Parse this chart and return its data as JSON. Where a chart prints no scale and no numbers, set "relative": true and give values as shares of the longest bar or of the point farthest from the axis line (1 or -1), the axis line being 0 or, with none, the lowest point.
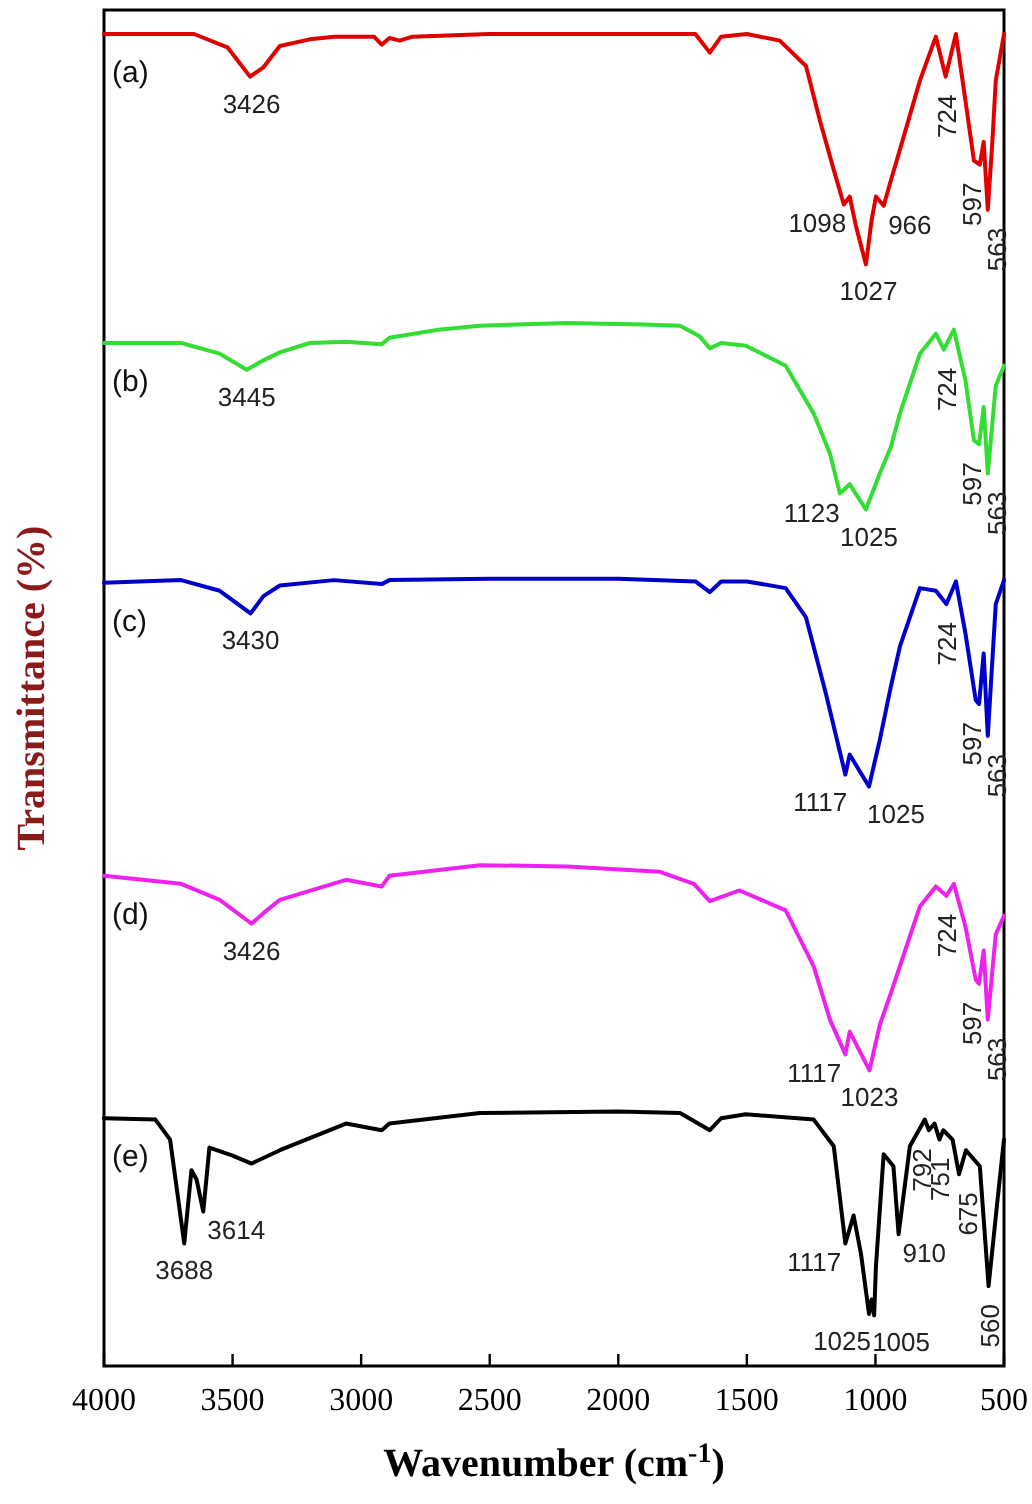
{
  "chart_data": {
    "type": "line",
    "relative": true,
    "xlabel": "Wavenumber (cm$^{-1}$)",
    "ylabel": "Transmittance (%)",
    "xlim": [
      4000,
      500
    ],
    "xticks": [
      4000,
      3500,
      3000,
      2500,
      2000,
      1500,
      1000,
      500
    ],
    "tick_labels": "x",
    "line_style": "solid",
    "series": [
      {
        "name": "(a)",
        "color": "#e00000",
        "x": [
          4000,
          3650,
          3520,
          3432,
          3380,
          3316,
          3200,
          3106,
          2950,
          2920,
          2890,
          2850,
          2800,
          2500,
          2000,
          1700,
          1644,
          1600,
          1500,
          1372,
          1270,
          1216,
          1162,
          1123,
          1100,
          1076,
          1037,
          1015,
          998,
          968,
          940,
          905,
          827,
          765,
          727,
          687,
          650,
          617,
          594,
          579,
          563,
          545,
          532,
          500
        ],
        "values": [
          1.0,
          1.0,
          0.99,
          0.968,
          0.975,
          0.991,
          0.996,
          0.998,
          0.998,
          0.992,
          0.997,
          0.995,
          0.998,
          1.0,
          1.0,
          1.0,
          0.986,
          0.998,
          1.0,
          0.995,
          0.976,
          0.935,
          0.898,
          0.872,
          0.878,
          0.856,
          0.827,
          0.86,
          0.878,
          0.871,
          0.89,
          0.913,
          0.965,
          0.998,
          0.968,
          1.0,
          0.95,
          0.905,
          0.902,
          0.919,
          0.868,
          0.92,
          0.965,
          1.0
        ]
      },
      {
        "name": "(b)",
        "color": "#33dd33",
        "x": [
          4000,
          3700,
          3550,
          3445,
          3380,
          3316,
          3200,
          3059,
          2920,
          2890,
          2700,
          2538,
          2200,
          1900,
          1760,
          1683,
          1644,
          1600,
          1504,
          1349,
          1240,
          1177,
          1138,
          1100,
          1037,
          983,
          940,
          905,
          827,
          765,
          734,
          695,
          650,
          617,
          597,
          579,
          563,
          532,
          500
        ],
        "values": [
          0.768,
          0.768,
          0.76,
          0.748,
          0.755,
          0.761,
          0.768,
          0.769,
          0.767,
          0.772,
          0.778,
          0.781,
          0.783,
          0.782,
          0.781,
          0.773,
          0.764,
          0.768,
          0.766,
          0.751,
          0.715,
          0.685,
          0.655,
          0.662,
          0.643,
          0.67,
          0.69,
          0.715,
          0.76,
          0.775,
          0.763,
          0.778,
          0.74,
          0.695,
          0.692,
          0.72,
          0.67,
          0.736,
          0.751
        ]
      },
      {
        "name": "(c)",
        "color": "#0000cc",
        "x": [
          4000,
          3700,
          3550,
          3430,
          3380,
          3316,
          3106,
          2920,
          2890,
          2500,
          2000,
          1700,
          1644,
          1600,
          1500,
          1349,
          1270,
          1193,
          1117,
          1100,
          1025,
          983,
          940,
          905,
          827,
          765,
          724,
          687,
          650,
          610,
          597,
          579,
          563,
          532,
          500
        ],
        "values": [
          0.588,
          0.59,
          0.582,
          0.565,
          0.578,
          0.586,
          0.59,
          0.587,
          0.59,
          0.591,
          0.591,
          0.589,
          0.581,
          0.589,
          0.589,
          0.584,
          0.562,
          0.505,
          0.444,
          0.459,
          0.435,
          0.47,
          0.51,
          0.54,
          0.584,
          0.582,
          0.572,
          0.589,
          0.55,
          0.5,
          0.497,
          0.535,
          0.473,
          0.572,
          0.59
        ]
      },
      {
        "name": "(d)",
        "color": "#ee22ee",
        "x": [
          4000,
          3700,
          3550,
          3426,
          3380,
          3316,
          3059,
          2920,
          2890,
          2538,
          2200,
          1838,
          1706,
          1644,
          1528,
          1349,
          1240,
          1177,
          1117,
          1100,
          1023,
          983,
          940,
          905,
          827,
          765,
          724,
          695,
          650,
          610,
          597,
          579,
          563,
          532,
          500
        ],
        "values": [
          0.368,
          0.362,
          0.35,
          0.332,
          0.34,
          0.35,
          0.365,
          0.36,
          0.368,
          0.376,
          0.375,
          0.371,
          0.362,
          0.349,
          0.357,
          0.342,
          0.3,
          0.26,
          0.234,
          0.251,
          0.222,
          0.256,
          0.28,
          0.3,
          0.345,
          0.36,
          0.353,
          0.362,
          0.33,
          0.29,
          0.287,
          0.312,
          0.26,
          0.324,
          0.338
        ]
      },
      {
        "name": "(e)",
        "color": "#000000",
        "x": [
          4000,
          3800,
          3743,
          3688,
          3660,
          3640,
          3614,
          3590,
          3500,
          3426,
          3316,
          3059,
          2920,
          2890,
          2538,
          2000,
          1760,
          1644,
          1600,
          1504,
          1240,
          1162,
          1117,
          1085,
          1056,
          1025,
          1015,
          1005,
          998,
          968,
          930,
          910,
          866,
          808,
          792,
          770,
          751,
          736,
          700,
          675,
          648,
          594,
          560,
          525,
          500
        ],
        "values": [
          0.186,
          0.185,
          0.17,
          0.092,
          0.147,
          0.14,
          0.116,
          0.164,
          0.158,
          0.152,
          0.162,
          0.182,
          0.177,
          0.182,
          0.19,
          0.191,
          0.19,
          0.177,
          0.186,
          0.189,
          0.185,
          0.165,
          0.092,
          0.113,
          0.084,
          0.039,
          0.05,
          0.038,
          0.075,
          0.159,
          0.15,
          0.099,
          0.165,
          0.185,
          0.177,
          0.182,
          0.17,
          0.177,
          0.17,
          0.144,
          0.162,
          0.15,
          0.06,
          0.125,
          0.17
        ]
      }
    ],
    "annotations": [
      {
        "text": "3426",
        "x": 3426,
        "y": 0.968
      },
      {
        "text": "1098",
        "x": 1098,
        "y": 0.872
      },
      {
        "text": "1027",
        "x": 1027,
        "y": 0.827
      },
      {
        "text": "966",
        "x": 966,
        "y": 0.871
      },
      {
        "text": "724",
        "x": 724,
        "y": 0.968
      },
      {
        "text": "597",
        "x": 597,
        "y": 0.902
      },
      {
        "text": "563",
        "x": 563,
        "y": 0.868
      },
      {
        "text": "3445",
        "x": 3445,
        "y": 0.748
      },
      {
        "text": "1123",
        "x": 1123,
        "y": 0.655
      },
      {
        "text": "1025",
        "x": 1025,
        "y": 0.643
      },
      {
        "text": "724",
        "x": 724,
        "y": 0.763
      },
      {
        "text": "597",
        "x": 597,
        "y": 0.692
      },
      {
        "text": "563",
        "x": 563,
        "y": 0.67
      },
      {
        "text": "3430",
        "x": 3430,
        "y": 0.565
      },
      {
        "text": "1117",
        "x": 1117,
        "y": 0.444
      },
      {
        "text": "1025",
        "x": 1025,
        "y": 0.435
      },
      {
        "text": "724",
        "x": 724,
        "y": 0.572
      },
      {
        "text": "597",
        "x": 597,
        "y": 0.497
      },
      {
        "text": "563",
        "x": 563,
        "y": 0.473
      },
      {
        "text": "3426",
        "x": 3426,
        "y": 0.332
      },
      {
        "text": "1117",
        "x": 1117,
        "y": 0.234
      },
      {
        "text": "1023",
        "x": 1023,
        "y": 0.222
      },
      {
        "text": "724",
        "x": 724,
        "y": 0.353
      },
      {
        "text": "597",
        "x": 597,
        "y": 0.287
      },
      {
        "text": "563",
        "x": 563,
        "y": 0.26
      },
      {
        "text": "3688",
        "x": 3688,
        "y": 0.092
      },
      {
        "text": "3614",
        "x": 3614,
        "y": 0.116
      },
      {
        "text": "1117",
        "x": 1117,
        "y": 0.092
      },
      {
        "text": "1025",
        "x": 1025,
        "y": 0.039
      },
      {
        "text": "1005",
        "x": 1005,
        "y": 0.038
      },
      {
        "text": "910",
        "x": 910,
        "y": 0.099
      },
      {
        "text": "792",
        "x": 792,
        "y": 0.177
      },
      {
        "text": "751",
        "x": 751,
        "y": 0.17
      },
      {
        "text": "675",
        "x": 675,
        "y": 0.144
      },
      {
        "text": "560",
        "x": 560,
        "y": 0.06
      }
    ]
  }
}
